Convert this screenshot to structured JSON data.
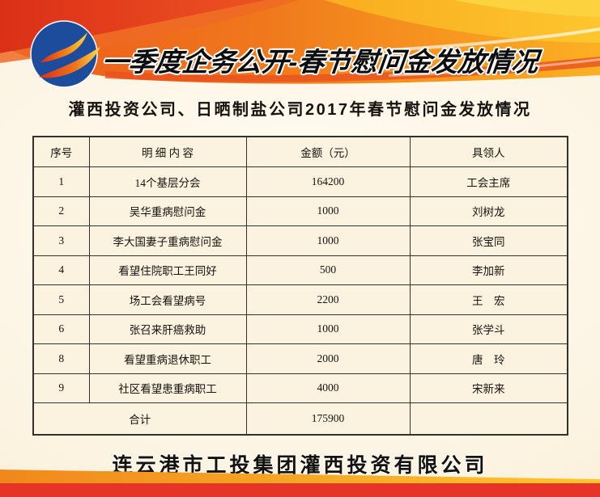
{
  "banner": {
    "title": "一季度企务公开-春节慰问金发放情况",
    "logo": "gongtou-swoosh-logo"
  },
  "subtitle": "灌西投资公司、日晒制盐公司2017年春节慰问金发放情况",
  "table": {
    "columns": [
      "序号",
      "明  细  内  容",
      "金额（元）",
      "具领人"
    ],
    "rows": [
      {
        "no": "1",
        "item": "14个基层分会",
        "amount": "164200",
        "recipient": "工会主席"
      },
      {
        "no": "2",
        "item": "吴华重病慰问金",
        "amount": "1000",
        "recipient": "刘树龙"
      },
      {
        "no": "3",
        "item": "李大国妻子重病慰问金",
        "amount": "1000",
        "recipient": "张宝同"
      },
      {
        "no": "4",
        "item": "看望住院职工王同好",
        "amount": "500",
        "recipient": "李加新"
      },
      {
        "no": "5",
        "item": "场工会看望病号",
        "amount": "2200",
        "recipient": "王　宏"
      },
      {
        "no": "6",
        "item": "张召来肝癌救助",
        "amount": "1000",
        "recipient": "张学斗"
      },
      {
        "no": "8",
        "item": "看望重病退休职工",
        "amount": "2000",
        "recipient": "唐　玲"
      },
      {
        "no": "9",
        "item": "社区看望患重病职工",
        "amount": "4000",
        "recipient": "宋新来"
      }
    ],
    "total": {
      "label": "合计",
      "amount": "175900",
      "recipient": ""
    }
  },
  "footer": {
    "company": "连云港市工投集团灌西投资有限公司"
  },
  "colors": {
    "banner_red": "#e03a20",
    "banner_orange": "#f0781c",
    "banner_yellow": "#fcc32d",
    "logo_blue": "#1e4c9c",
    "page_cream": "#fcf4e3",
    "table_border": "#34302a",
    "bottom_band_red": "#e63427",
    "bottom_stripe_orange": "#f29a1d"
  }
}
